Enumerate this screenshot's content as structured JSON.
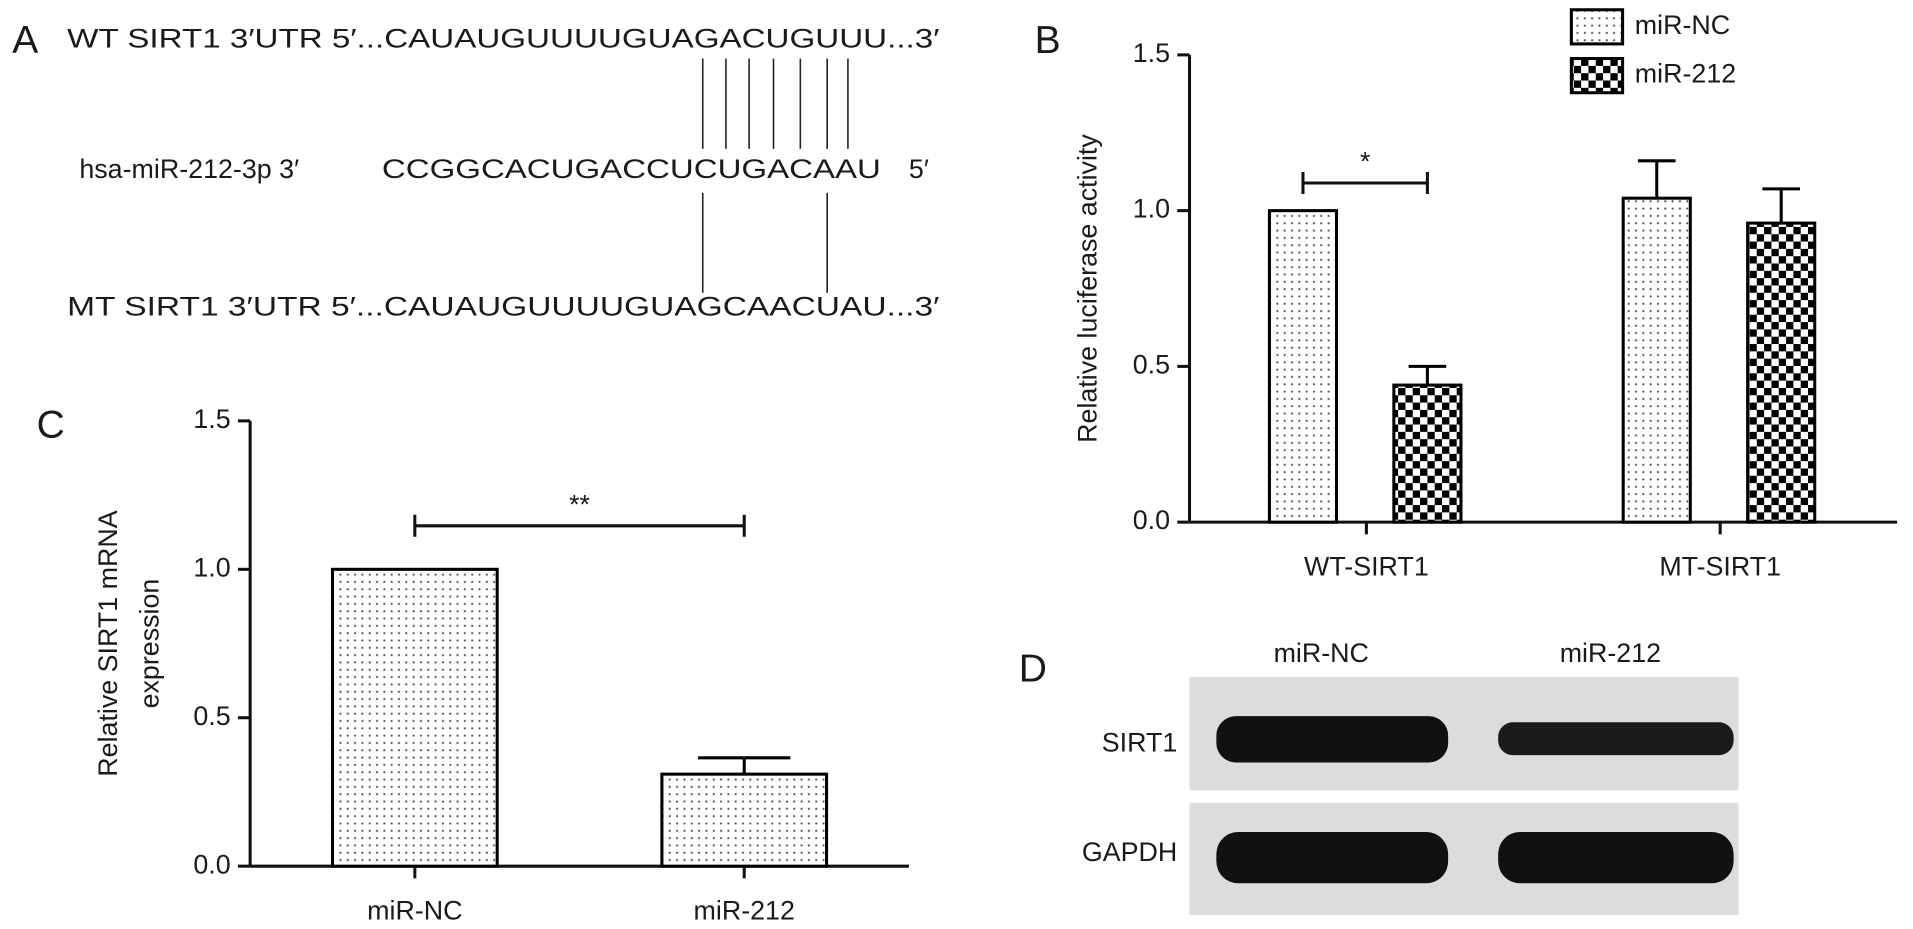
{
  "panel_a": {
    "label": "A",
    "wt_line": "WT SIRT1 3′UTR 5′...CAUAUGUUUUGUAGACUGUUU...3′",
    "mirna_name": "hsa-miR-212-3p 3′",
    "mirna_seq": "CCGGCACUGACCUCUGACAAU",
    "mirna_end": "5′",
    "mt_line": "MT SIRT1 3′UTR 5′...CAUAUGUUUUGUAGCAACUAU...3′"
  },
  "chart_data": [
    {
      "type": "bar",
      "label": "B",
      "ylabel": "Relative luciferase activity",
      "categories": [
        "WT-SIRT1",
        "MT-SIRT1"
      ],
      "series": [
        {
          "name": "miR-NC",
          "color": "#000000",
          "pattern": "dots",
          "values": [
            1.0,
            1.04
          ],
          "errors": [
            0,
            0.12
          ]
        },
        {
          "name": "miR-212",
          "color": "#000000",
          "pattern": "checker",
          "values": [
            0.44,
            0.96
          ],
          "errors": [
            0.06,
            0.11
          ]
        }
      ],
      "ylim": [
        0,
        1.5
      ],
      "yticks": [
        {
          "value": 0,
          "label": "0.0"
        },
        0.5,
        {
          "value": 1,
          "label": "1.0"
        },
        1.5
      ],
      "annotations": [
        "*"
      ],
      "legend": "top"
    },
    {
      "type": "bar",
      "label": "C",
      "ylabel": [
        "Relative SIRT1 mRNA",
        "expression"
      ],
      "categories": [
        "miR-NC",
        "miR-212"
      ],
      "series": [
        {
          "color": "#000000",
          "pattern": "dots",
          "values": [
            1.0,
            0.31
          ],
          "errors": [
            0,
            0.055
          ]
        }
      ],
      "ylim": [
        0,
        1.5
      ],
      "yticks": [
        {
          "value": 0,
          "label": "0.0"
        },
        0.5,
        {
          "value": 1,
          "label": "1.0"
        },
        1.5
      ],
      "annotations": [
        "**"
      ]
    }
  ],
  "panel_d": {
    "label": "D",
    "lanes": [
      "miR-NC",
      "miR-212"
    ],
    "rows": [
      "SIRT1",
      "GAPDH"
    ]
  }
}
